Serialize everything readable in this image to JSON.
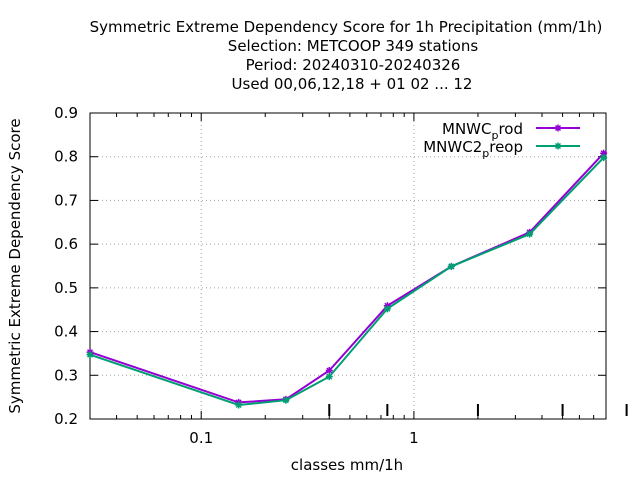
{
  "chart_data": {
    "type": "line",
    "title_lines": [
      "Symmetric Extreme Dependency Score  for 1h Precipitation (mm/1h)",
      "Selection: METCOOP    349 stations",
      "Period: 20240310-20240326",
      "Used  00,06,12,18 + 01 02 ... 12"
    ],
    "xlabel": "classes mm/1h",
    "ylabel": "Symmetric Extreme Dependency Score",
    "x_scale": "log",
    "xlim": [
      0.03,
      8.0
    ],
    "ylim": [
      0.2,
      0.9
    ],
    "x_tick_labels": [
      "0.1",
      "1"
    ],
    "x_ticks": [
      0.1,
      1
    ],
    "y_ticks": [
      0.2,
      0.3,
      0.4,
      0.5,
      0.6,
      0.7,
      0.8,
      0.9
    ],
    "y_tick_labels": [
      "0.2",
      "0.3",
      "0.4",
      "0.5",
      "0.6",
      "0.7",
      "0.8",
      "0.9"
    ],
    "grid": true,
    "legend_position": "top-right",
    "series": [
      {
        "name_main": "MNWC",
        "name_sub": "p",
        "name_rest": "rod",
        "color": "#9400d3",
        "x": [
          0.03,
          0.15,
          0.25,
          0.4,
          0.75,
          1.5,
          3.5,
          7.8
        ],
        "y": [
          0.353,
          0.238,
          0.245,
          0.311,
          0.459,
          0.549,
          0.627,
          0.808
        ]
      },
      {
        "name_main": "MNWC2",
        "name_sub": "p",
        "name_rest": "reop",
        "color": "#009e73",
        "x": [
          0.03,
          0.15,
          0.25,
          0.4,
          0.75,
          1.5,
          3.5,
          7.8
        ],
        "y": [
          0.347,
          0.232,
          0.243,
          0.297,
          0.452,
          0.549,
          0.623,
          0.798
        ]
      }
    ]
  }
}
